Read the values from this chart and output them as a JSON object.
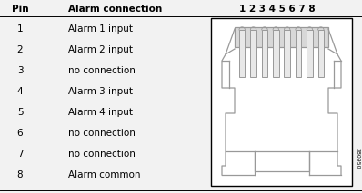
{
  "title_pin": "Pin",
  "title_alarm": "Alarm connection",
  "title_nums": "1 2 3 4 5 6 7 8",
  "pins": [
    1,
    2,
    3,
    4,
    5,
    6,
    7,
    8
  ],
  "connections": [
    "Alarm 1 input",
    "Alarm 2 input",
    "no connection",
    "Alarm 3 input",
    "Alarm 4 input",
    "no connection",
    "no connection",
    "Alarm common"
  ],
  "bg_color": "#f2f2f2",
  "line_color": "#999999",
  "dark_line": "#555555",
  "text_color": "#000000",
  "fig_id": "280950",
  "fig_width": 3.98,
  "fig_height": 2.13,
  "dpi": 100
}
